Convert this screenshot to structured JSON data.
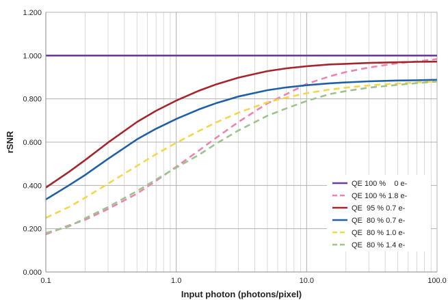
{
  "chart_data": {
    "type": "line",
    "title": "",
    "xlabel": "Input photon (photons/pixel)",
    "ylabel": "rSNR",
    "x_scale": "log",
    "xlim": [
      0.1,
      100
    ],
    "ylim": [
      0,
      1.2
    ],
    "x_ticks": [
      "0.1",
      "1.0",
      "10.0",
      "100.0"
    ],
    "y_ticks": [
      "0.000",
      "0.200",
      "0.400",
      "0.600",
      "0.800",
      "1.000",
      "1.200"
    ],
    "grid": true,
    "legend_position": "bottom-right",
    "series": [
      {
        "name": "QE 100 %    0 e-",
        "color": "#6a3d9a",
        "dash": "solid",
        "x": [
          0.1,
          0.2,
          0.5,
          1,
          2,
          5,
          10,
          20,
          50,
          100
        ],
        "y": [
          1.0,
          1.0,
          1.0,
          1.0,
          1.0,
          1.0,
          1.0,
          1.0,
          1.0,
          1.0
        ]
      },
      {
        "name": "QE 100 % 1.8 e-",
        "color": "#ee82b0",
        "dash": "dashed",
        "x": [
          0.1,
          0.15,
          0.2,
          0.3,
          0.5,
          0.7,
          1,
          1.5,
          2,
          3,
          5,
          7,
          10,
          15,
          20,
          30,
          50,
          70,
          100
        ],
        "y": [
          0.174,
          0.215,
          0.241,
          0.291,
          0.362,
          0.421,
          0.486,
          0.562,
          0.618,
          0.693,
          0.779,
          0.822,
          0.869,
          0.904,
          0.924,
          0.945,
          0.965,
          0.973,
          0.984
        ]
      },
      {
        "name": "QE  95 % 0.7 e-",
        "color": "#a4262c",
        "dash": "solid",
        "x": [
          0.1,
          0.15,
          0.2,
          0.3,
          0.5,
          0.7,
          1,
          1.5,
          2,
          3,
          5,
          7,
          10,
          15,
          20,
          30,
          50,
          70,
          100
        ],
        "y": [
          0.39,
          0.462,
          0.517,
          0.598,
          0.693,
          0.745,
          0.792,
          0.838,
          0.866,
          0.898,
          0.928,
          0.941,
          0.951,
          0.959,
          0.962,
          0.966,
          0.969,
          0.971,
          0.972
        ]
      },
      {
        "name": "QE  80 % 0.7 e-",
        "color": "#1f5fa6",
        "dash": "solid",
        "x": [
          0.1,
          0.15,
          0.2,
          0.3,
          0.5,
          0.7,
          1,
          1.5,
          2,
          3,
          5,
          7,
          10,
          15,
          20,
          30,
          50,
          70,
          100
        ],
        "y": [
          0.335,
          0.4,
          0.448,
          0.523,
          0.613,
          0.662,
          0.707,
          0.752,
          0.779,
          0.811,
          0.84,
          0.853,
          0.863,
          0.872,
          0.876,
          0.881,
          0.885,
          0.886,
          0.888
        ]
      },
      {
        "name": "QE  80 % 1.0 e-",
        "color": "#f5d64a",
        "dash": "dashed",
        "x": [
          0.1,
          0.15,
          0.2,
          0.3,
          0.5,
          0.7,
          1,
          1.5,
          2,
          3,
          5,
          7,
          10,
          15,
          20,
          30,
          50,
          70,
          100
        ],
        "y": [
          0.25,
          0.3,
          0.343,
          0.408,
          0.49,
          0.544,
          0.597,
          0.652,
          0.69,
          0.736,
          0.784,
          0.806,
          0.826,
          0.843,
          0.852,
          0.862,
          0.871,
          0.876,
          0.881
        ]
      },
      {
        "name": "QE  80 % 1.4 e-",
        "color": "#9bc48a",
        "dash": "dashed",
        "x": [
          0.1,
          0.15,
          0.2,
          0.3,
          0.5,
          0.7,
          1,
          1.5,
          2,
          3,
          5,
          7,
          10,
          15,
          20,
          30,
          50,
          70,
          100
        ],
        "y": [
          0.18,
          0.21,
          0.248,
          0.3,
          0.374,
          0.427,
          0.482,
          0.542,
          0.591,
          0.654,
          0.722,
          0.756,
          0.79,
          0.822,
          0.836,
          0.852,
          0.865,
          0.873,
          0.88
        ]
      }
    ]
  }
}
